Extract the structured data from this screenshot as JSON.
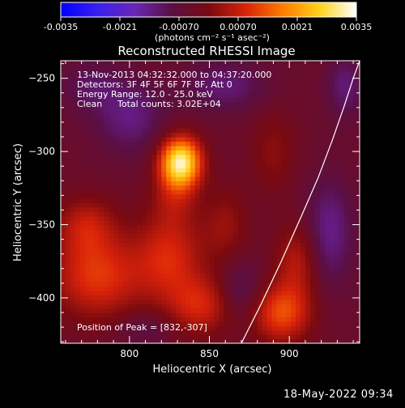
{
  "colorbar": {
    "ticks": [
      "-0.0035",
      "-0.0021",
      "-0.00070",
      "0.00070",
      "0.0021",
      "0.0035"
    ],
    "unit_label": "(photons cm⁻² s⁻¹ asec⁻²)",
    "min": -0.0035,
    "max": 0.0035,
    "stops": [
      "#0000ff",
      "#3a1ff0",
      "#6a26b5",
      "#5a0f45",
      "#7a0a10",
      "#d8220a",
      "#ff7a00",
      "#ffd21a",
      "#ffffff"
    ]
  },
  "chart_data": {
    "type": "heatmap",
    "title": "Reconstructed RHESSI Image",
    "xlabel": "Heliocentric X (arcsec)",
    "ylabel": "Heliocentric Y (arcsec)",
    "xlim": [
      757,
      944
    ],
    "ylim": [
      -431,
      -238
    ],
    "xticks": [
      800,
      850,
      900
    ],
    "yticks": [
      -250,
      -300,
      -350,
      -400
    ],
    "peak": {
      "x": 832,
      "y": -307
    },
    "annotations": [
      "13-Nov-2013 04:32:32.000 to 04:37:20.000",
      "Detectors: 3F 4F 5F 6F 7F 8F, Att 0",
      "Energy Range: 12.0 - 25.0 keV",
      "Clean",
      "Total counts: 3.02E+04"
    ],
    "peak_label": "Position of Peak = [832,-307]",
    "limb_curve": [
      {
        "x": 870,
        "y": -431
      },
      {
        "x": 882,
        "y": -405
      },
      {
        "x": 895,
        "y": -375
      },
      {
        "x": 908,
        "y": -343
      },
      {
        "x": 918,
        "y": -318
      },
      {
        "x": 927,
        "y": -292
      },
      {
        "x": 934,
        "y": -270
      },
      {
        "x": 940,
        "y": -250
      },
      {
        "x": 944,
        "y": -238
      }
    ],
    "blobs": [
      {
        "x": 832,
        "y": -307,
        "amp": 0.0036,
        "sx": 9,
        "sy": 12
      },
      {
        "x": 828,
        "y": -330,
        "amp": 0.0007,
        "sx": 10,
        "sy": 14
      },
      {
        "x": 780,
        "y": -385,
        "amp": 0.0015,
        "sx": 20,
        "sy": 20
      },
      {
        "x": 773,
        "y": -350,
        "amp": 0.001,
        "sx": 13,
        "sy": 14
      },
      {
        "x": 825,
        "y": -372,
        "amp": 0.0013,
        "sx": 15,
        "sy": 22
      },
      {
        "x": 845,
        "y": -405,
        "amp": 0.0012,
        "sx": 14,
        "sy": 14
      },
      {
        "x": 895,
        "y": -410,
        "amp": 0.0017,
        "sx": 13,
        "sy": 14
      },
      {
        "x": 905,
        "y": -375,
        "amp": 0.001,
        "sx": 10,
        "sy": 18
      },
      {
        "x": 860,
        "y": -350,
        "amp": 0.0007,
        "sx": 10,
        "sy": 18
      },
      {
        "x": 890,
        "y": -300,
        "amp": 0.0006,
        "sx": 10,
        "sy": 20
      },
      {
        "x": 800,
        "y": -275,
        "amp": -0.0009,
        "sx": 15,
        "sy": 18
      },
      {
        "x": 860,
        "y": -255,
        "amp": -0.0008,
        "sx": 18,
        "sy": 12
      },
      {
        "x": 870,
        "y": -395,
        "amp": -0.0007,
        "sx": 10,
        "sy": 14
      },
      {
        "x": 925,
        "y": -355,
        "amp": -0.001,
        "sx": 10,
        "sy": 25
      },
      {
        "x": 775,
        "y": -255,
        "amp": -0.0006,
        "sx": 12,
        "sy": 12
      },
      {
        "x": 935,
        "y": -255,
        "amp": -0.0008,
        "sx": 8,
        "sy": 15
      },
      {
        "x": 810,
        "y": -420,
        "amp": -0.0005,
        "sx": 12,
        "sy": 8
      }
    ]
  },
  "footer": {
    "date": "18-May-2022 09:34"
  }
}
